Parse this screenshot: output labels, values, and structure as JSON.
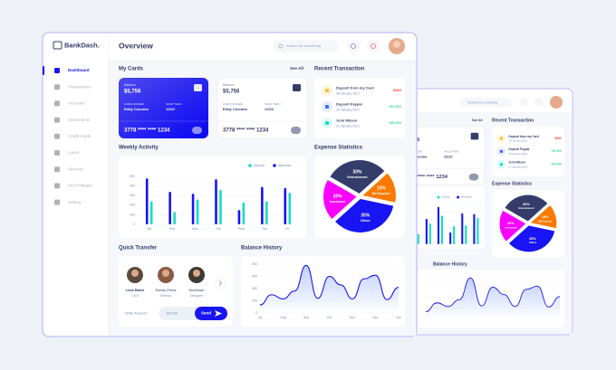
{
  "brand": "BankDash.",
  "sidebar": [
    "Dashboard",
    "Transactions",
    "Accounts",
    "Investments",
    "Credit Cards",
    "Loans",
    "Services",
    "My Privileges",
    "Setting"
  ],
  "header": {
    "title": "Overview",
    "search": "Search for something"
  },
  "cards": {
    "title": "My Cards",
    "see_all": "See All",
    "items": [
      {
        "balance_label": "Balance",
        "balance": "$5,756",
        "holder_label": "CARD HOLDER",
        "holder": "Eddy Cusuma",
        "valid_label": "VALID THRU",
        "valid": "12/22",
        "number": "3778 **** **** 1234"
      },
      {
        "balance_label": "Balance",
        "balance": "$5,756",
        "holder_label": "CARD HOLDER",
        "holder": "Eddy Cusuma",
        "valid_label": "VALID THRU",
        "valid": "12/22",
        "number": "3778 **** **** 1234"
      }
    ]
  },
  "transactions": {
    "title": "Recent Transaction",
    "items": [
      {
        "name": "Deposit from my Card",
        "date": "28 January 2021",
        "amount": "-$850"
      },
      {
        "name": "Deposit Paypal",
        "date": "25 January 2021",
        "amount": "+$2,500"
      },
      {
        "name": "Jemi Wilson",
        "date": "21 January 2021",
        "amount": "+$5,400"
      }
    ]
  },
  "weekly": {
    "title": "Weekly Activity",
    "type": "bar",
    "categories": [
      "Sat",
      "Sun",
      "Mon",
      "Tue",
      "Wed",
      "Thu",
      "Fri"
    ],
    "series": [
      {
        "name": "Deposit",
        "color": "#16dbcc",
        "values": [
          240,
          130,
          260,
          360,
          230,
          240,
          330
        ]
      },
      {
        "name": "Withdraw",
        "color": "#1814f3",
        "values": [
          480,
          340,
          320,
          470,
          150,
          390,
          380
        ]
      }
    ],
    "ylim": [
      0,
      500
    ],
    "yticks": [
      0,
      100,
      200,
      300,
      400,
      500
    ],
    "grid": true
  },
  "expense": {
    "title": "Expense Statistics",
    "type": "pie",
    "categories": [
      "Entertainment",
      "Bill Expense",
      "Others",
      "Investment"
    ],
    "values": [
      30,
      15,
      35,
      20
    ],
    "value_labels": [
      "30%",
      "15%",
      "35%",
      "20%"
    ],
    "colors": [
      "#343c6a",
      "#fc7900",
      "#1814f3",
      "#fa00ff"
    ]
  },
  "transfer": {
    "title": "Quick Transfer",
    "people": [
      {
        "name": "Livia Bator",
        "role": "CEO"
      },
      {
        "name": "Randy Press",
        "role": "Director"
      },
      {
        "name": "Workman",
        "role": "Designer"
      }
    ],
    "amount_label": "Write Amount",
    "amount": "$25.50",
    "send": "Send"
  },
  "balance": {
    "title": "Balance History",
    "type": "area",
    "categories": [
      "Jul",
      null,
      "Aug",
      null,
      "Sep",
      null,
      "Oct",
      null,
      "Nov",
      null,
      "Dec",
      null,
      "Jan"
    ],
    "values": [
      130,
      300,
      230,
      360,
      780,
      240,
      600,
      460,
      230,
      560,
      620,
      220,
      420
    ],
    "color": "#1814f3",
    "ylim": [
      0,
      800
    ],
    "yticks": [
      0,
      200,
      400,
      600,
      800
    ],
    "grid": true
  }
}
